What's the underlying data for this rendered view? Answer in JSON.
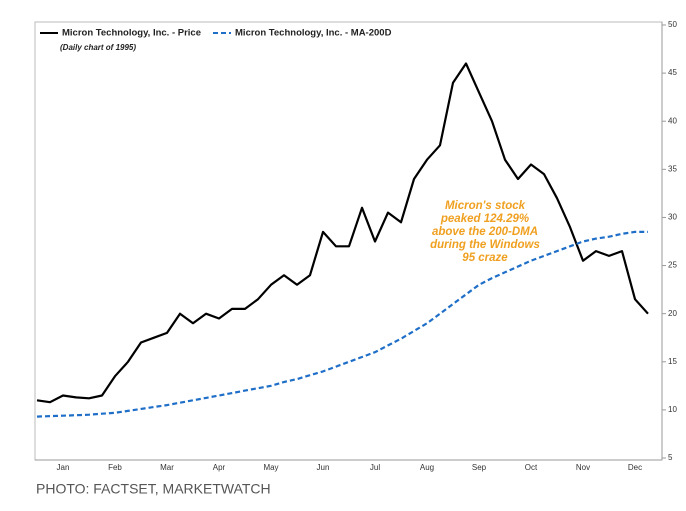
{
  "chart_data": {
    "type": "line",
    "subtitle": "(Daily chart of 1995)",
    "annotation": [
      "Micron's stock",
      "peaked 124.29%",
      "above the 200-DMA",
      "during the Windows",
      "95 craze"
    ],
    "source": "PHOTO: FACTSET, MARKETWATCH",
    "categories": [
      null,
      null,
      "Jan",
      null,
      null,
      null,
      "Feb",
      null,
      null,
      null,
      "Mar",
      null,
      null,
      null,
      "Apr",
      null,
      null,
      null,
      "May",
      null,
      null,
      null,
      "Jun",
      null,
      null,
      null,
      "Jul",
      null,
      null,
      null,
      "Aug",
      null,
      null,
      null,
      "Sep",
      null,
      null,
      null,
      "Oct",
      null,
      null,
      null,
      "Nov",
      null,
      null,
      null,
      "Dec",
      null
    ],
    "series": [
      {
        "name": "Micron Technology, Inc. - Price",
        "color": "#000000",
        "dashed": false,
        "values": [
          11,
          10.8,
          11.5,
          11.3,
          11.2,
          11.5,
          13.5,
          15,
          17,
          17.5,
          18,
          20,
          19,
          20,
          19.5,
          20.5,
          20.5,
          21.5,
          23,
          24,
          23,
          24,
          28.5,
          27,
          27,
          31,
          27.5,
          30.5,
          29.5,
          34,
          36,
          37.5,
          44,
          46,
          43,
          40,
          36,
          34,
          35.5,
          34.5,
          32,
          29,
          25.5,
          26.5,
          26,
          26.5,
          21.5,
          20
        ]
      },
      {
        "name": "Micron Technology, Inc. - MA-200D",
        "color": "#1f6fc8",
        "dashed": true,
        "values": [
          9.3,
          9.35,
          9.4,
          9.45,
          9.5,
          9.6,
          9.7,
          9.9,
          10.1,
          10.3,
          10.5,
          10.75,
          11,
          11.25,
          11.5,
          11.75,
          12,
          12.25,
          12.5,
          12.9,
          13.2,
          13.6,
          14,
          14.5,
          15,
          15.5,
          16,
          16.7,
          17.4,
          18.2,
          19,
          20,
          21,
          22,
          23,
          23.7,
          24.3,
          24.9,
          25.5,
          26,
          26.5,
          27,
          27.5,
          27.8,
          28,
          28.3,
          28.5,
          28.5
        ]
      }
    ],
    "ylim": [
      5,
      50
    ],
    "yticks": [
      5,
      10,
      15,
      20,
      25,
      30,
      35,
      40,
      45,
      50
    ],
    "grid": false
  }
}
